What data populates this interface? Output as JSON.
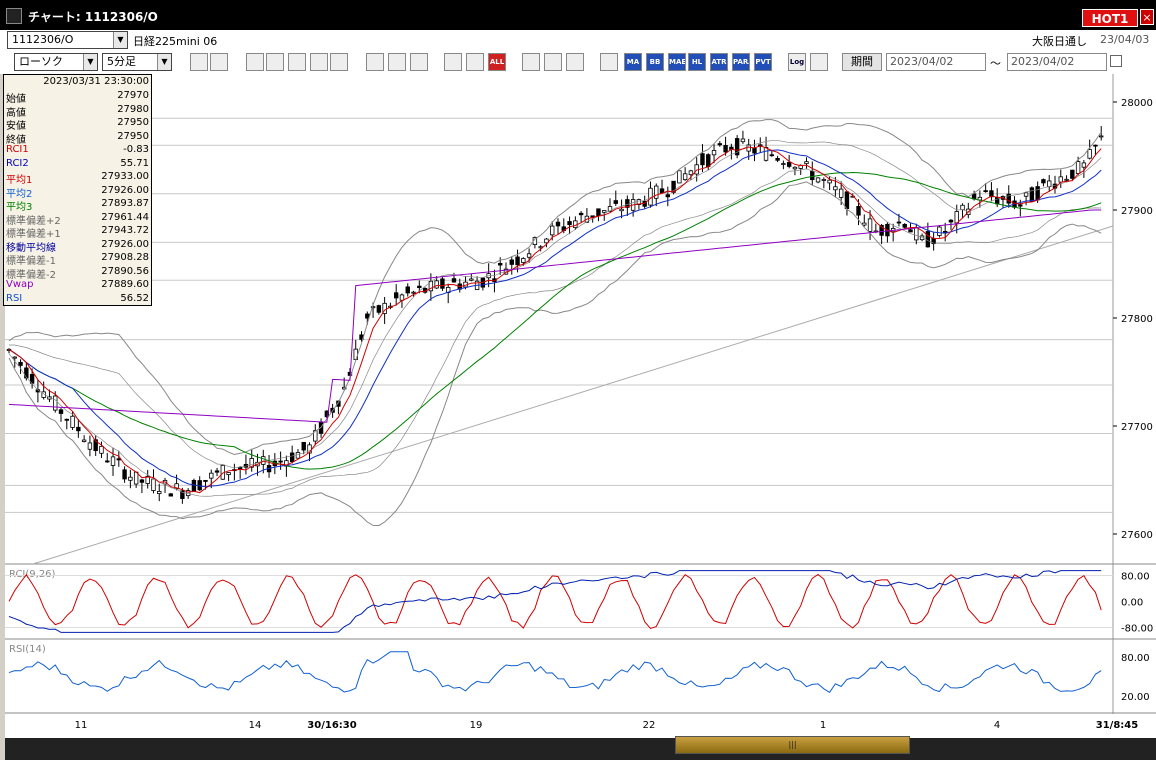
{
  "window": {
    "title": "チャート: 1112306/O"
  },
  "hot_badge": "HOT1",
  "close_label": "×",
  "symbol": {
    "code": "1112306/O",
    "name": "日経225mini 06"
  },
  "market": "大阪日通し",
  "header_date": "23/04/03",
  "chart_type": "ローソク",
  "timeframe": "5分足",
  "toolbar": {
    "icons": [
      "arrow-down-icon",
      "calendar-icon",
      "search-icon",
      "zoom-icon",
      "trend-icon",
      "cross-icon",
      "bar-icon",
      "lock-icon",
      "pen-icon",
      "cursor-icon",
      "eraser-icon",
      "candle-icon",
      "candle-alt-icon",
      "all-icon",
      "settings-icon",
      "wrench-icon",
      "color-icon"
    ],
    "buttons": [
      "ALL",
      "MA",
      "BB",
      "MAE",
      "HL",
      "ATR",
      "PARA",
      "PVT",
      "Log"
    ],
    "period_label": "期間",
    "date_from": "2023/04/02",
    "date_to": "2023/04/02",
    "tilde": "～"
  },
  "info_panel": {
    "datetime": "2023/03/31 23:30:00",
    "rows": [
      {
        "label": "始値",
        "value": "27970",
        "color": "#000000"
      },
      {
        "label": "高値",
        "value": "27980",
        "color": "#000000"
      },
      {
        "label": "安値",
        "value": "27950",
        "color": "#000000"
      },
      {
        "label": "終値",
        "value": "27950",
        "color": "#000000"
      },
      {
        "label": "RCI1",
        "value": "-0.83",
        "color": "#d00000"
      },
      {
        "label": "RCI2",
        "value": "55.71",
        "color": "#0000c0"
      },
      {
        "label": "平均1",
        "value": "27933.00",
        "color": "#d00000"
      },
      {
        "label": "平均2",
        "value": "27926.00",
        "color": "#1060d0"
      },
      {
        "label": "平均3",
        "value": "27893.87",
        "color": "#008000"
      },
      {
        "label": "標準偏差+2",
        "value": "27961.44",
        "color": "#666666"
      },
      {
        "label": "標準偏差+1",
        "value": "27943.72",
        "color": "#666666"
      },
      {
        "label": "移動平均線",
        "value": "27926.00",
        "color": "#0000a0"
      },
      {
        "label": "標準偏差-1",
        "value": "27908.28",
        "color": "#666666"
      },
      {
        "label": "標準偏差-2",
        "value": "27890.56",
        "color": "#666666"
      },
      {
        "label": "Vwap",
        "value": "27889.60",
        "color": "#9000c0"
      },
      {
        "label": "RSI",
        "value": "56.52",
        "color": "#1050d0"
      }
    ]
  },
  "price_axis": [
    "28000",
    "27900",
    "27800",
    "27700",
    "27600"
  ],
  "rci_panel": {
    "label": "RCI(9,26)",
    "ticks": [
      "80.00",
      "0.00",
      "-80.00"
    ]
  },
  "rsi_panel": {
    "label": "RSI(14)",
    "ticks": [
      "80.00",
      "20.00"
    ]
  },
  "x_axis": [
    "11",
    "14",
    "30/16:30",
    "19",
    "22",
    "1",
    "4",
    "31/8:45"
  ],
  "scroll_thumb": "|||",
  "colors": {
    "avg1": "#d00000",
    "avg2": "#1030c8",
    "avg3": "#008000",
    "vwap": "#9000c0",
    "band": "#888888",
    "rsi": "#1060d0"
  }
}
